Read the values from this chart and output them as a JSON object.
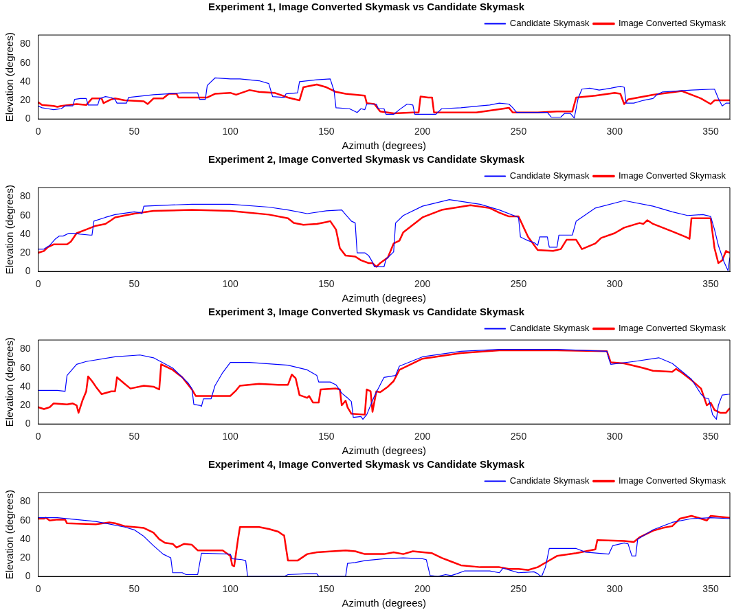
{
  "chart_data": [
    {
      "type": "line",
      "title": "Experiment 1, Image Converted Skymask vs Candidate Skymask",
      "xlabel": "Azimuth (degrees)",
      "ylabel": "Elevation (degrees)",
      "xlim": [
        0,
        360
      ],
      "xticks": [
        0,
        50,
        100,
        150,
        200,
        250,
        300,
        350
      ],
      "ylim": [
        0,
        90
      ],
      "yticks": [
        0,
        20,
        40,
        60,
        80
      ],
      "grid": false,
      "legend": "top right",
      "marker": "none",
      "line_style": "solid",
      "series": [
        {
          "name": "Candidate Skymask",
          "color": "#0000ff",
          "x": [
            0,
            2,
            5,
            8,
            12,
            14,
            18,
            19,
            22,
            25,
            26,
            31,
            32,
            35,
            38,
            40,
            41,
            46,
            47,
            60,
            75,
            83,
            84,
            87,
            88,
            92,
            100,
            105,
            115,
            120,
            122,
            128,
            129,
            135,
            136,
            145,
            152,
            154,
            155,
            162,
            166,
            168,
            170,
            171,
            176,
            177,
            180,
            181,
            185,
            188,
            192,
            195,
            196,
            204,
            207,
            210,
            220,
            230,
            235,
            240,
            245,
            247,
            249,
            255,
            265,
            267,
            272,
            274,
            277,
            279,
            281,
            283,
            287,
            292,
            298,
            303,
            305,
            306,
            310,
            315,
            320,
            322,
            325,
            340,
            352,
            354,
            356,
            358,
            360
          ],
          "values": [
            14,
            12,
            11,
            10,
            11,
            14,
            14,
            21,
            22,
            22,
            15,
            15,
            22,
            24,
            23,
            21,
            17,
            17,
            23,
            26,
            28,
            28,
            21,
            21,
            36,
            44,
            43,
            43,
            41,
            38,
            24,
            23,
            27,
            28,
            40,
            42,
            43,
            30,
            12,
            11,
            7,
            11,
            10,
            16,
            16,
            11,
            11,
            5,
            5,
            10,
            16,
            15,
            5,
            5,
            5,
            11,
            12,
            14,
            15,
            17,
            16,
            12,
            7,
            7,
            7,
            2,
            2,
            6,
            6,
            1,
            22,
            32,
            33,
            31,
            33,
            35,
            34,
            17,
            17,
            20,
            22,
            26,
            29,
            31,
            32,
            22,
            14,
            17,
            17
          ]
        },
        {
          "name": "Image Converted Skymask",
          "color": "#ff0000",
          "x": [
            0,
            2,
            8,
            10,
            12,
            20,
            25,
            28,
            33,
            34,
            38,
            40,
            45,
            55,
            57,
            60,
            65,
            68,
            72,
            73,
            85,
            88,
            92,
            100,
            103,
            110,
            115,
            123,
            130,
            134,
            136,
            138,
            145,
            150,
            155,
            160,
            170,
            171,
            175,
            178,
            185,
            195,
            198,
            199,
            203,
            205,
            206,
            215,
            228,
            235,
            245,
            247,
            260,
            270,
            278,
            280,
            290,
            300,
            303,
            305,
            307,
            320,
            335,
            345,
            350,
            352,
            360
          ],
          "values": [
            18,
            15,
            14,
            13,
            14,
            16,
            15,
            22,
            22,
            17,
            21,
            22,
            20,
            19,
            16,
            22,
            22,
            27,
            27,
            23,
            23,
            23,
            27,
            28,
            26,
            31,
            29,
            28,
            23,
            21,
            20,
            34,
            37,
            34,
            29,
            27,
            25,
            17,
            16,
            8,
            6,
            7,
            7,
            24,
            23,
            23,
            7,
            7,
            7,
            9,
            12,
            7,
            7,
            8,
            8,
            23,
            25,
            28,
            27,
            16,
            21,
            26,
            30,
            22,
            16,
            20,
            20
          ]
        }
      ]
    },
    {
      "type": "line",
      "title": "Experiment 2, Image Converted Skymask vs Candidate Skymask",
      "xlabel": "Azimuth (degrees)",
      "ylabel": "Elevation (degrees)",
      "xlim": [
        0,
        360
      ],
      "xticks": [
        0,
        50,
        100,
        150,
        200,
        250,
        300,
        350
      ],
      "ylim": [
        0,
        90
      ],
      "yticks": [
        0,
        20,
        40,
        60,
        80
      ],
      "grid": false,
      "legend": "top right",
      "marker": "none",
      "line_style": "solid",
      "series": [
        {
          "name": "Candidate Skymask",
          "color": "#0000ff",
          "x": [
            0,
            3,
            6,
            9,
            11,
            13,
            16,
            18,
            22,
            27,
            28,
            29,
            35,
            40,
            50,
            53,
            54,
            55,
            65,
            80,
            100,
            120,
            130,
            140,
            150,
            158,
            160,
            163,
            165,
            166,
            170,
            172,
            174,
            175,
            180,
            181,
            184,
            185,
            186,
            190,
            200,
            214,
            230,
            240,
            250,
            251,
            253,
            255,
            258,
            260,
            261,
            265,
            266,
            270,
            271,
            278,
            280,
            290,
            305,
            320,
            330,
            338,
            346,
            350,
            352,
            354,
            357,
            359,
            360
          ],
          "values": [
            24,
            24,
            28,
            35,
            38,
            38,
            41,
            41,
            40,
            39,
            39,
            54,
            58,
            61,
            64,
            63,
            62,
            70,
            71,
            72,
            72,
            69,
            66,
            62,
            65,
            66,
            61,
            54,
            52,
            20,
            20,
            17,
            10,
            5,
            5,
            13,
            19,
            21,
            52,
            60,
            70,
            77,
            72,
            66,
            58,
            37,
            35,
            33,
            31,
            28,
            37,
            37,
            26,
            26,
            39,
            39,
            54,
            68,
            76,
            70,
            64,
            60,
            61,
            59,
            45,
            28,
            10,
            1,
            15
          ]
        },
        {
          "name": "Image Converted Skymask",
          "color": "#ff0000",
          "x": [
            0,
            3,
            5,
            8,
            12,
            15,
            17,
            20,
            25,
            30,
            35,
            38,
            40,
            50,
            60,
            80,
            100,
            120,
            130,
            133,
            138,
            145,
            150,
            152,
            155,
            157,
            160,
            165,
            168,
            172,
            174,
            176,
            178,
            182,
            185,
            188,
            190,
            200,
            210,
            225,
            235,
            240,
            245,
            250,
            255,
            260,
            268,
            272,
            275,
            280,
            283,
            290,
            293,
            300,
            305,
            313,
            315,
            317,
            320,
            330,
            337,
            339,
            340,
            350,
            352,
            354,
            356,
            358,
            360
          ],
          "values": [
            20,
            22,
            26,
            29,
            29,
            29,
            32,
            41,
            45,
            49,
            51,
            55,
            58,
            62,
            65,
            66,
            65,
            61,
            57,
            52,
            50,
            51,
            53,
            54,
            45,
            25,
            17,
            16,
            12,
            9,
            9,
            5,
            9,
            15,
            30,
            33,
            42,
            58,
            66,
            71,
            68,
            63,
            59,
            59,
            37,
            23,
            22,
            24,
            34,
            34,
            24,
            30,
            36,
            41,
            47,
            52,
            51,
            55,
            51,
            43,
            37,
            35,
            57,
            57,
            25,
            9,
            12,
            22,
            20
          ]
        }
      ]
    },
    {
      "type": "line",
      "title": "Experiment 3, Image Converted Skymask vs Candidate Skymask",
      "xlabel": "Azimuth (degrees)",
      "ylabel": "Elevation (degrees)",
      "xlim": [
        0,
        360
      ],
      "xticks": [
        0,
        50,
        100,
        150,
        200,
        250,
        300,
        350
      ],
      "ylim": [
        0,
        90
      ],
      "yticks": [
        0,
        20,
        40,
        60,
        80
      ],
      "grid": false,
      "legend": "top right",
      "marker": "none",
      "line_style": "solid",
      "series": [
        {
          "name": "Candidate Skymask",
          "color": "#0000ff",
          "x": [
            0,
            10,
            14,
            15,
            20,
            25,
            40,
            53,
            60,
            70,
            78,
            80,
            81,
            84,
            85,
            86,
            90,
            92,
            96,
            100,
            110,
            130,
            140,
            145,
            146,
            152,
            155,
            158,
            161,
            163,
            164,
            168,
            169,
            171,
            175,
            180,
            186,
            188,
            200,
            220,
            240,
            270,
            296,
            297,
            298,
            310,
            323,
            330,
            340,
            345,
            347,
            349,
            351,
            353,
            354,
            356,
            360
          ],
          "values": [
            36,
            36,
            35,
            52,
            64,
            67,
            72,
            74,
            71,
            60,
            44,
            38,
            21,
            20,
            19,
            27,
            27,
            41,
            55,
            66,
            66,
            63,
            58,
            52,
            45,
            45,
            42,
            33,
            28,
            24,
            7,
            8,
            5,
            10,
            30,
            50,
            52,
            62,
            72,
            78,
            80,
            80,
            78,
            70,
            64,
            67,
            71,
            65,
            48,
            32,
            28,
            27,
            10,
            5,
            20,
            31,
            32
          ]
        },
        {
          "name": "Image Converted Skymask",
          "color": "#ff0000",
          "x": [
            0,
            3,
            6,
            8,
            15,
            18,
            20,
            21,
            23,
            25,
            26,
            28,
            30,
            33,
            38,
            40,
            41,
            45,
            48,
            55,
            60,
            63,
            64,
            70,
            75,
            80,
            82,
            90,
            100,
            103,
            105,
            115,
            125,
            130,
            132,
            134,
            136,
            140,
            141,
            143,
            146,
            147,
            155,
            157,
            158,
            160,
            161,
            163,
            170,
            171,
            173,
            174,
            176,
            178,
            182,
            185,
            188,
            200,
            220,
            240,
            270,
            296,
            298,
            305,
            315,
            320,
            330,
            332,
            335,
            340,
            345,
            348,
            350,
            352,
            355,
            358,
            360
          ],
          "values": [
            18,
            16,
            18,
            22,
            21,
            22,
            20,
            12,
            25,
            35,
            51,
            46,
            40,
            32,
            35,
            35,
            50,
            43,
            38,
            41,
            40,
            37,
            64,
            58,
            50,
            37,
            30,
            30,
            30,
            36,
            41,
            43,
            42,
            42,
            53,
            49,
            31,
            28,
            30,
            23,
            23,
            37,
            38,
            37,
            20,
            25,
            18,
            11,
            10,
            37,
            35,
            13,
            35,
            34,
            40,
            46,
            58,
            70,
            76,
            79,
            79,
            78,
            66,
            65,
            60,
            57,
            56,
            59,
            55,
            47,
            38,
            20,
            23,
            15,
            12,
            12,
            17
          ]
        }
      ]
    },
    {
      "type": "line",
      "title": "Experiment 4, Image Converted Skymask vs Candidate Skymask",
      "xlabel": "Azimuth (degrees)",
      "ylabel": "Elevation (degrees)",
      "xlim": [
        0,
        360
      ],
      "xticks": [
        0,
        50,
        100,
        150,
        200,
        250,
        300,
        350
      ],
      "ylim": [
        0,
        90
      ],
      "yticks": [
        0,
        20,
        40,
        60,
        80
      ],
      "grid": false,
      "legend": "top right",
      "marker": "none",
      "line_style": "solid",
      "series": [
        {
          "name": "Candidate Skymask",
          "color": "#0000ff",
          "x": [
            0,
            10,
            30,
            45,
            50,
            55,
            60,
            65,
            68,
            69,
            70,
            75,
            77,
            83,
            85,
            100,
            101,
            106,
            108,
            109,
            128,
            130,
            140,
            145,
            146,
            160,
            161,
            165,
            170,
            180,
            190,
            200,
            202,
            204,
            208,
            212,
            215,
            218,
            222,
            230,
            235,
            240,
            242,
            245,
            250,
            258,
            260,
            261,
            262,
            264,
            266,
            280,
            285,
            297,
            299,
            305,
            307,
            309,
            311,
            312,
            320,
            330,
            340,
            350,
            360
          ],
          "values": [
            63,
            63,
            59,
            53,
            50,
            43,
            33,
            24,
            21,
            20,
            4,
            4,
            2,
            2,
            25,
            24,
            19,
            18,
            17,
            0,
            0,
            2,
            3,
            3,
            0,
            0,
            14,
            15,
            17,
            19,
            20,
            19,
            18,
            1,
            0,
            2,
            1,
            3,
            6,
            6,
            6,
            4,
            9,
            7,
            4,
            5,
            3,
            1,
            0,
            10,
            30,
            30,
            26,
            24,
            33,
            36,
            35,
            22,
            22,
            40,
            50,
            58,
            62,
            63,
            62
          ]
        },
        {
          "name": "Image Converted Skymask",
          "color": "#ff0000",
          "x": [
            0,
            3,
            4,
            6,
            10,
            14,
            15,
            30,
            37,
            40,
            45,
            50,
            55,
            60,
            63,
            66,
            70,
            72,
            76,
            80,
            83,
            90,
            96,
            100,
            101,
            102,
            104,
            105,
            115,
            120,
            125,
            127,
            128,
            130,
            135,
            140,
            145,
            160,
            165,
            170,
            180,
            185,
            190,
            195,
            205,
            210,
            215,
            220,
            230,
            240,
            245,
            250,
            255,
            260,
            265,
            270,
            280,
            285,
            290,
            291,
            305,
            310,
            313,
            320,
            325,
            330,
            334,
            340,
            345,
            348,
            350,
            360
          ],
          "values": [
            62,
            62,
            63,
            60,
            61,
            61,
            57,
            56,
            58,
            57,
            54,
            53,
            52,
            47,
            40,
            36,
            35,
            31,
            35,
            34,
            28,
            28,
            28,
            22,
            12,
            11,
            40,
            53,
            53,
            51,
            48,
            45,
            44,
            17,
            17,
            24,
            26,
            28,
            27,
            24,
            24,
            26,
            24,
            27,
            25,
            20,
            16,
            12,
            10,
            10,
            8,
            8,
            7,
            10,
            16,
            22,
            25,
            27,
            29,
            39,
            38,
            37,
            42,
            49,
            52,
            54,
            62,
            65,
            62,
            60,
            65,
            63
          ]
        }
      ]
    }
  ]
}
